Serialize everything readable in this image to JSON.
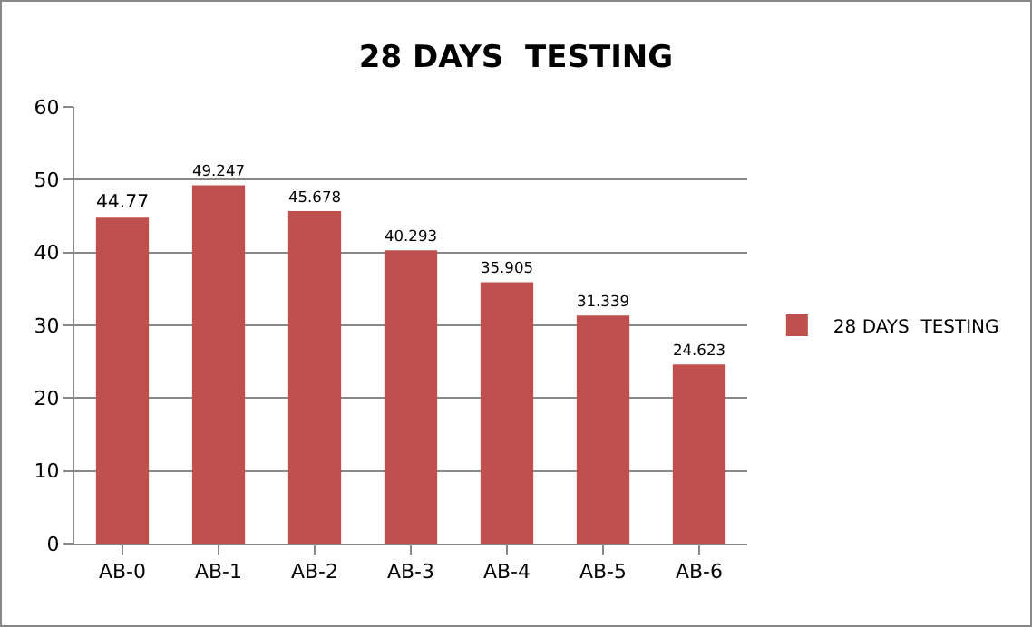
{
  "chart_data": {
    "type": "bar",
    "title": "28 DAYS  TESTING",
    "categories": [
      "AB-0",
      "AB-1",
      "AB-2",
      "AB-3",
      "AB-4",
      "AB-5",
      "AB-6"
    ],
    "series": [
      {
        "name": "28 DAYS  TESTING",
        "color": "#c0504d",
        "values": [
          44.77,
          49.247,
          45.678,
          40.293,
          35.905,
          31.339,
          24.623
        ]
      }
    ],
    "ylim": [
      0,
      60
    ],
    "yticks": [
      0,
      10,
      20,
      30,
      40,
      50,
      60
    ],
    "grid": "y",
    "legend": "right",
    "data_labels": true
  }
}
